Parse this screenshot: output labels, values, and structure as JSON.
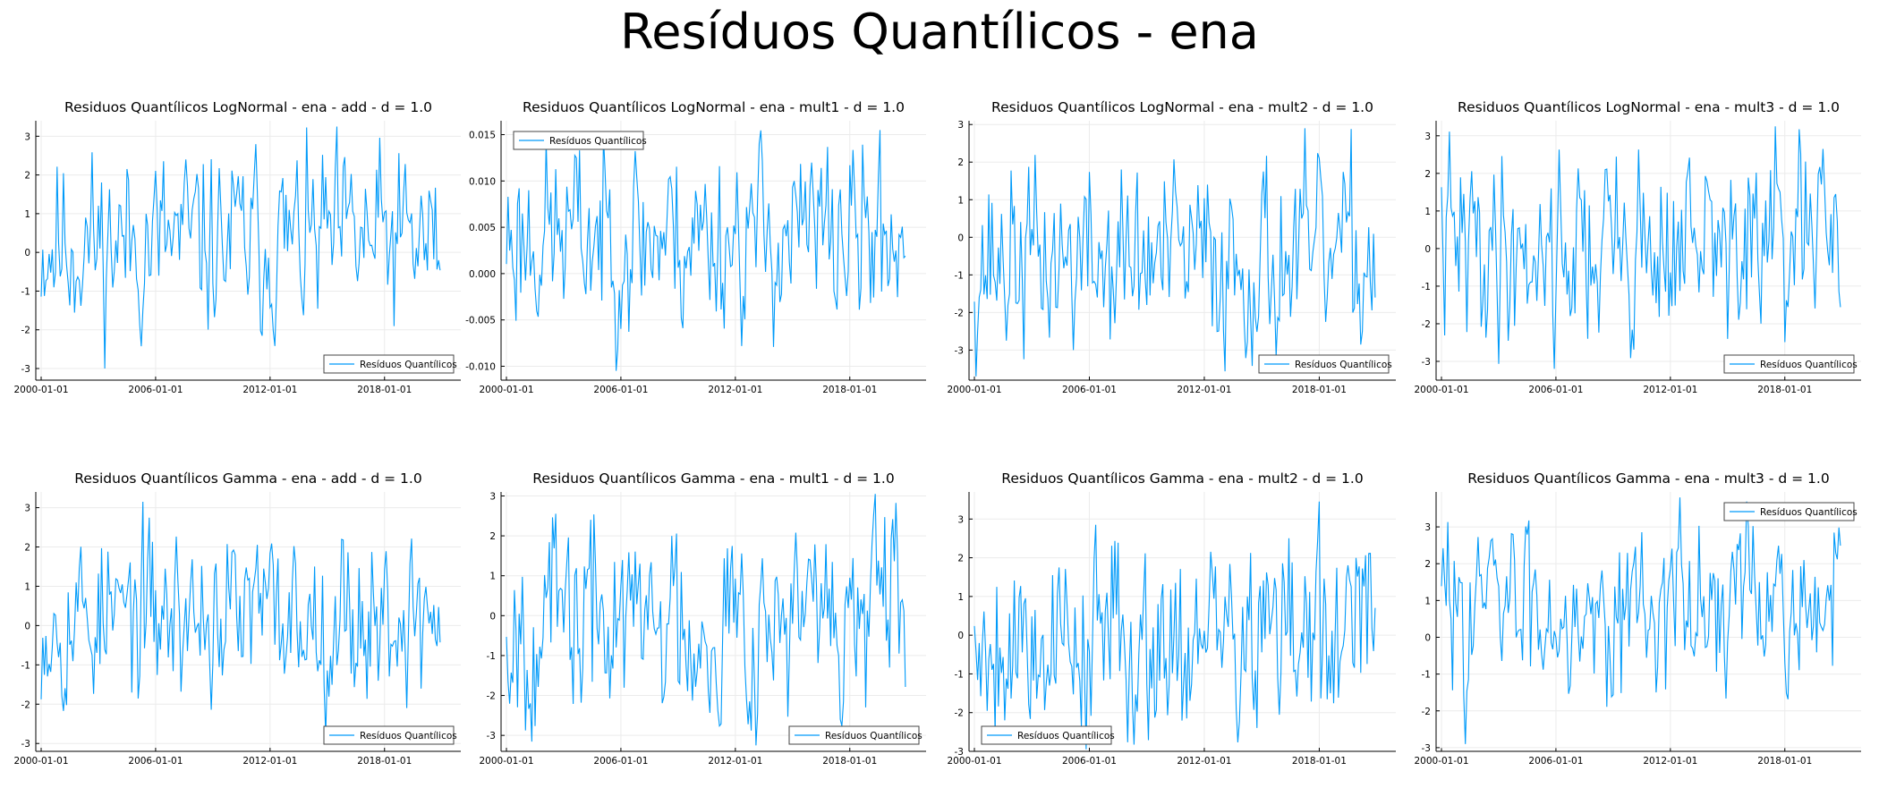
{
  "title": "Resíduos Quantílicos - ena",
  "colors": {
    "series": "#009af9",
    "axis": "#000000",
    "grid": "#ebebeb"
  },
  "chart_data": [
    {
      "type": "line",
      "title": "Residuos Quantílicos LogNormal - ena - add - d = 1.0",
      "x": [
        "2000-01-01",
        "2020-12-01"
      ],
      "xticks": [
        "2000-01-01",
        "2006-01-01",
        "2012-01-01",
        "2018-01-01"
      ],
      "yticks": [
        "-3",
        "-2",
        "-1",
        "0",
        "1",
        "2",
        "3"
      ],
      "ylim": [
        -3.3,
        3.4
      ],
      "legend": {
        "label": "Resíduos Quantílicos",
        "position": "bottom-right"
      },
      "series": [
        {
          "name": "Resíduos Quantílicos",
          "summary": {
            "min": -3.0,
            "max": 3.25,
            "seed": 11
          }
        }
      ],
      "grid": true
    },
    {
      "type": "line",
      "title": "Residuos Quantílicos LogNormal - ena - mult1 - d = 1.0",
      "x": [
        "2000-01-01",
        "2020-12-01"
      ],
      "xticks": [
        "2000-01-01",
        "2006-01-01",
        "2012-01-01",
        "2018-01-01"
      ],
      "yticks": [
        "-0.010",
        "-0.005",
        "0.000",
        "0.005",
        "0.010",
        "0.015"
      ],
      "ylim": [
        -0.0115,
        0.0165
      ],
      "legend": {
        "label": "Resíduos Quantílicos",
        "position": "top-left"
      },
      "series": [
        {
          "name": "Resíduos Quantílicos",
          "summary": {
            "min": -0.0105,
            "max": 0.0155,
            "seed": 23
          }
        }
      ],
      "grid": true
    },
    {
      "type": "line",
      "title": "Residuos Quantílicos LogNormal - ena - mult2 - d = 1.0",
      "x": [
        "2000-01-01",
        "2020-12-01"
      ],
      "xticks": [
        "2000-01-01",
        "2006-01-01",
        "2012-01-01",
        "2018-01-01"
      ],
      "yticks": [
        "-3",
        "-2",
        "-1",
        "0",
        "1",
        "2",
        "3"
      ],
      "ylim": [
        -3.8,
        3.1
      ],
      "legend": {
        "label": "Resíduos Quantílicos",
        "position": "bottom-right"
      },
      "series": [
        {
          "name": "Resíduos Quantílicos",
          "summary": {
            "min": -3.7,
            "max": 2.9,
            "seed": 37
          }
        }
      ],
      "grid": true
    },
    {
      "type": "line",
      "title": "Residuos Quantílicos LogNormal - ena - mult3 - d = 1.0",
      "x": [
        "2000-01-01",
        "2020-12-01"
      ],
      "xticks": [
        "2000-01-01",
        "2006-01-01",
        "2012-01-01",
        "2018-01-01"
      ],
      "yticks": [
        "-3",
        "-2",
        "-1",
        "0",
        "1",
        "2",
        "3"
      ],
      "ylim": [
        -3.5,
        3.4
      ],
      "legend": {
        "label": "Resíduos Quantílicos",
        "position": "bottom-right"
      },
      "series": [
        {
          "name": "Resíduos Quantílicos",
          "summary": {
            "min": -3.2,
            "max": 3.25,
            "seed": 41
          }
        }
      ],
      "grid": true
    },
    {
      "type": "line",
      "title": "Residuos Quantílicos Gamma - ena - add - d = 1.0",
      "x": [
        "2000-01-01",
        "2020-12-01"
      ],
      "xticks": [
        "2000-01-01",
        "2006-01-01",
        "2012-01-01",
        "2018-01-01"
      ],
      "yticks": [
        "-3",
        "-2",
        "-1",
        "0",
        "1",
        "2",
        "3"
      ],
      "ylim": [
        -3.2,
        3.4
      ],
      "legend": {
        "label": "Resíduos Quantílicos",
        "position": "bottom-right"
      },
      "series": [
        {
          "name": "Resíduos Quantílicos",
          "summary": {
            "min": -2.8,
            "max": 3.15,
            "seed": 53
          }
        }
      ],
      "grid": true
    },
    {
      "type": "line",
      "title": "Residuos Quantílicos Gamma - ena - mult1 - d = 1.0",
      "x": [
        "2000-01-01",
        "2020-12-01"
      ],
      "xticks": [
        "2000-01-01",
        "2006-01-01",
        "2012-01-01",
        "2018-01-01"
      ],
      "yticks": [
        "-3",
        "-2",
        "-1",
        "0",
        "1",
        "2",
        "3"
      ],
      "ylim": [
        -3.4,
        3.1
      ],
      "legend": {
        "label": "Resíduos Quantílicos",
        "position": "bottom-right"
      },
      "series": [
        {
          "name": "Resíduos Quantílicos",
          "summary": {
            "min": -3.25,
            "max": 3.05,
            "seed": 67
          }
        }
      ],
      "grid": true
    },
    {
      "type": "line",
      "title": "Residuos Quantílicos Gamma - ena - mult2 - d = 1.0",
      "x": [
        "2000-01-01",
        "2020-12-01"
      ],
      "xticks": [
        "2000-01-01",
        "2006-01-01",
        "2012-01-01",
        "2018-01-01"
      ],
      "yticks": [
        "-3",
        "-2",
        "-1",
        "0",
        "1",
        "2",
        "3"
      ],
      "ylim": [
        -3.0,
        3.7
      ],
      "legend": {
        "label": "Resíduos Quantílicos",
        "position": "bottom-left"
      },
      "series": [
        {
          "name": "Resíduos Quantílicos",
          "summary": {
            "min": -2.95,
            "max": 3.45,
            "seed": 79
          }
        }
      ],
      "grid": true
    },
    {
      "type": "line",
      "title": "Residuos Quantílicos Gamma - ena - mult3 - d = 1.0",
      "x": [
        "2000-01-01",
        "2020-12-01"
      ],
      "xticks": [
        "2000-01-01",
        "2006-01-01",
        "2012-01-01",
        "2018-01-01"
      ],
      "yticks": [
        "-3",
        "-2",
        "-1",
        "0",
        "1",
        "2",
        "3"
      ],
      "ylim": [
        -3.1,
        3.95
      ],
      "legend": {
        "label": "Resíduos Quantílicos",
        "position": "top-right"
      },
      "series": [
        {
          "name": "Resíduos Quantílicos",
          "summary": {
            "min": -2.9,
            "max": 3.8,
            "seed": 83
          }
        }
      ],
      "grid": true
    }
  ]
}
